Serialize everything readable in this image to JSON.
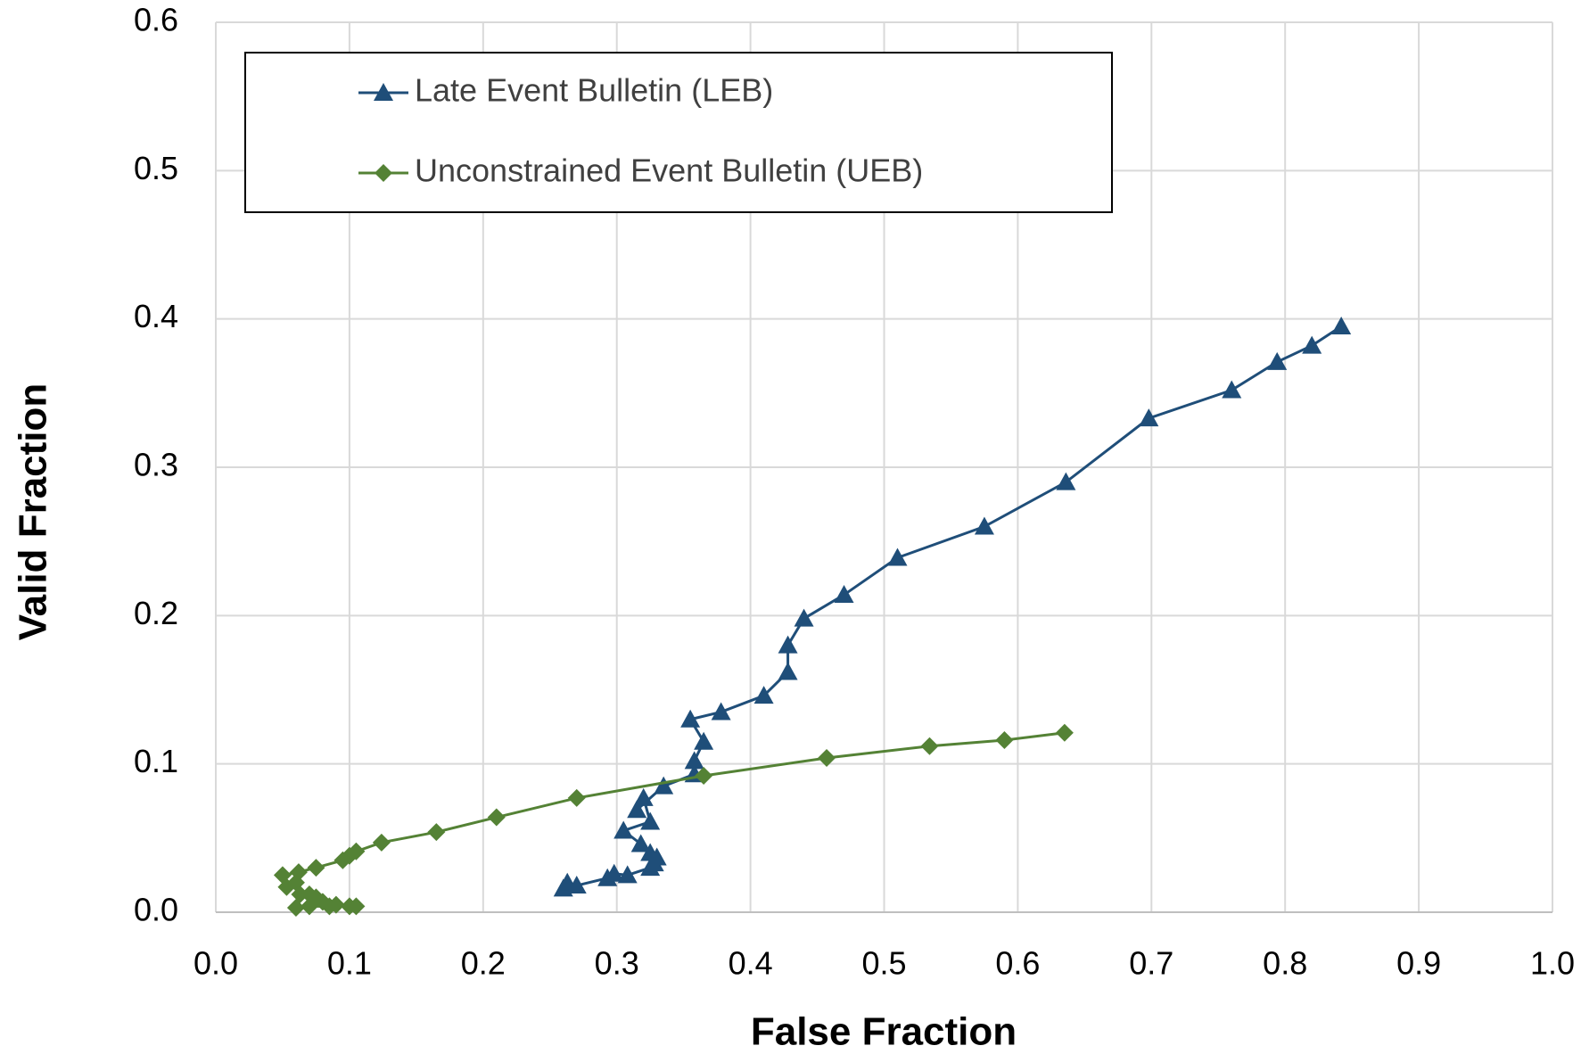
{
  "chart_data": {
    "type": "line",
    "xlabel": "False Fraction",
    "ylabel": "Valid Fraction",
    "xlim": [
      0,
      1
    ],
    "ylim": [
      0,
      0.6
    ],
    "xticks": [
      {
        "value": 0,
        "label": "0.0"
      },
      0.1,
      0.2,
      0.3,
      0.4,
      0.5,
      0.6,
      0.7,
      0.8,
      0.9,
      {
        "value": 1,
        "label": "1.0"
      }
    ],
    "yticks": [
      {
        "value": 0,
        "label": "0.0"
      },
      0.1,
      0.2,
      0.3,
      0.4,
      0.5,
      0.6
    ],
    "grid": true,
    "legend": "upper left",
    "series": [
      {
        "name": "Late Event Bulletin (LEB)",
        "color": "#1f4e79",
        "marker": "triangle",
        "x": [
          0.26,
          0.263,
          0.27,
          0.293,
          0.298,
          0.308,
          0.325,
          0.328,
          0.33,
          0.325,
          0.318,
          0.305,
          0.325,
          0.32,
          0.315,
          0.335,
          0.358,
          0.358,
          0.365,
          0.355,
          0.378,
          0.41,
          0.428,
          0.428,
          0.44,
          0.47,
          0.51,
          0.575,
          0.636,
          0.698,
          0.76,
          0.794,
          0.82,
          0.842
        ],
        "values": [
          0.016,
          0.02,
          0.018,
          0.023,
          0.026,
          0.025,
          0.03,
          0.033,
          0.037,
          0.04,
          0.046,
          0.055,
          0.061,
          0.077,
          0.069,
          0.085,
          0.093,
          0.102,
          0.115,
          0.13,
          0.135,
          0.146,
          0.162,
          0.18,
          0.198,
          0.214,
          0.239,
          0.26,
          0.29,
          0.333,
          0.352,
          0.371,
          0.382,
          0.395
        ]
      },
      {
        "name": "Unconstrained Event Bulletin (UEB)",
        "color": "#548235",
        "marker": "diamond",
        "x": [
          0.635,
          0.59,
          0.534,
          0.457,
          0.365,
          0.27,
          0.21,
          0.165,
          0.124,
          0.105,
          0.1,
          0.095,
          0.075,
          0.062,
          0.05,
          0.053,
          0.06,
          0.063,
          0.07,
          0.075,
          0.08,
          0.09,
          0.1,
          0.105,
          0.085,
          0.07,
          0.06
        ],
        "values": [
          0.121,
          0.116,
          0.112,
          0.104,
          0.092,
          0.077,
          0.064,
          0.054,
          0.047,
          0.041,
          0.038,
          0.035,
          0.03,
          0.027,
          0.025,
          0.017,
          0.02,
          0.012,
          0.012,
          0.01,
          0.007,
          0.005,
          0.004,
          0.004,
          0.004,
          0.004,
          0.003
        ]
      }
    ]
  }
}
